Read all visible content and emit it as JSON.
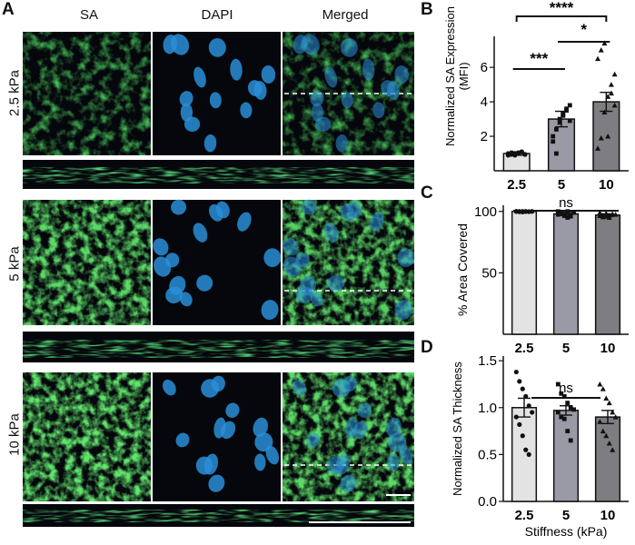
{
  "panel_labels": {
    "a": "A",
    "b": "B",
    "c": "C",
    "d": "D"
  },
  "panel_a": {
    "columns": [
      "SA",
      "DAPI",
      "Merged"
    ],
    "rows": [
      "2.5 kPa",
      "5 kPa",
      "10 kPa"
    ]
  },
  "colors": {
    "sa_green": "#2fb52f",
    "dapi_blue": "#2a8ed8",
    "background": "#05070c"
  },
  "chart_data": [
    {
      "panel": "B",
      "type": "bar",
      "categories": [
        "2.5",
        "5",
        "10"
      ],
      "values": [
        1.0,
        3.0,
        4.0
      ],
      "errors": [
        0.1,
        0.45,
        0.55
      ],
      "fills": [
        "#e3e3e3",
        "#9a9aa6",
        "#7d7d82"
      ],
      "points": [
        [
          0.9,
          0.95,
          1.0,
          1.05,
          1.1,
          0.95,
          1.0,
          1.05,
          0.9,
          1.0,
          1.1,
          0.95
        ],
        [
          2.0,
          2.4,
          3.0,
          3.3,
          3.6,
          3.8,
          1.7,
          1.0,
          2.8,
          3.2,
          3.5,
          2.9
        ],
        [
          1.3,
          1.9,
          3.4,
          4.3,
          5.0,
          5.6,
          6.5,
          7.0,
          7.4,
          2.0,
          4.5,
          3.8
        ]
      ],
      "ylabel": "Normalized SA Expression (MFI)",
      "yticks": [
        2,
        4,
        6
      ],
      "ylim": [
        0,
        7.8
      ],
      "annotations": [
        "****",
        "*",
        "***"
      ]
    },
    {
      "panel": "C",
      "type": "bar",
      "categories": [
        "2.5",
        "5",
        "10"
      ],
      "values": [
        100,
        98,
        97
      ],
      "errors": [
        0.5,
        1.2,
        1.0
      ],
      "fills": [
        "#e3e3e3",
        "#9a9aa6",
        "#7d7d82"
      ],
      "points": [
        [
          100,
          100,
          99.5,
          100,
          99.8,
          100,
          100,
          99.7,
          100,
          99.9
        ],
        [
          100,
          98,
          97,
          95,
          96,
          99,
          97.5,
          98.5,
          96.5,
          100
        ],
        [
          99,
          97,
          96,
          95,
          98,
          97.5,
          96.5,
          95.5,
          98.5,
          97
        ]
      ],
      "ylabel": "% Area Covered",
      "yticks": [
        50,
        100
      ],
      "ylim": [
        0,
        105
      ],
      "annotations": [
        "ns"
      ]
    },
    {
      "panel": "D",
      "type": "bar",
      "categories": [
        "2.5",
        "5",
        "10"
      ],
      "values": [
        1.0,
        0.97,
        0.9
      ],
      "errors": [
        0.1,
        0.05,
        0.07
      ],
      "fills": [
        "#e3e3e3",
        "#9a9aa6",
        "#7d7d82"
      ],
      "points": [
        [
          1.38,
          1.28,
          1.2,
          1.12,
          1.02,
          0.95,
          0.9,
          0.82,
          0.7,
          0.55,
          0.5
        ],
        [
          1.25,
          1.15,
          1.12,
          1.05,
          1.0,
          0.98,
          0.95,
          0.9,
          0.88,
          0.75,
          0.65
        ],
        [
          1.25,
          1.2,
          1.1,
          1.05,
          0.95,
          0.9,
          0.85,
          0.75,
          0.7,
          0.62,
          0.55
        ]
      ],
      "ylabel": "Normalized SA Thickness",
      "xlabel": "Stiffness (kPa)",
      "yticks": [
        0.0,
        0.5,
        1.0,
        1.5
      ],
      "ylim": [
        0,
        1.55
      ],
      "annotations": [
        "ns"
      ]
    }
  ]
}
